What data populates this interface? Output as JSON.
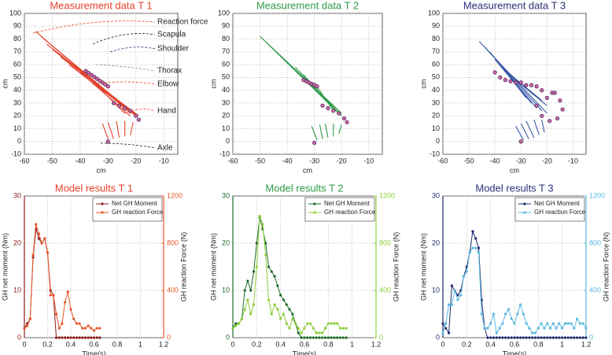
{
  "chart_data": [
    {
      "type": "scatter",
      "title": "Measurement data T 1",
      "title_color": "#e4402a",
      "xlabel": "cm",
      "ylabel": "cm",
      "xlim": [
        -60,
        -5
      ],
      "ylim": [
        -10,
        100
      ],
      "xticks": [
        -60,
        -50,
        -40,
        -30,
        -20,
        -10
      ],
      "yticks": [
        -10,
        0,
        10,
        20,
        30,
        40,
        50,
        60,
        70,
        80,
        90,
        100
      ],
      "grid": true,
      "series": [
        {
          "color": "#5a2458",
          "x": [
            -38,
            -37,
            -36,
            -35,
            -34,
            -33,
            -32,
            -31,
            -30,
            -28,
            -26,
            -24,
            -22,
            -20,
            -19,
            -30
          ],
          "values": [
            55,
            53.5,
            52,
            50.5,
            49,
            47.5,
            46,
            44.5,
            43,
            30,
            28,
            26,
            24,
            20,
            17,
            0
          ]
        }
      ],
      "segments": [
        {
          "color": "#e4402a",
          "x": [
            -56,
            -54,
            -52,
            -50,
            -47,
            -44,
            -40,
            -36,
            -30,
            -28,
            -26,
            -24,
            -22
          ],
          "values": [
            86,
            82,
            76,
            72,
            66,
            60,
            54,
            48,
            2,
            2,
            3,
            4,
            5
          ],
          "x_end": [
            -22,
            -21,
            -20,
            -20,
            -19,
            -20,
            -22,
            -24,
            -32,
            -30,
            -27,
            -24,
            -21
          ],
          "values_end": [
            22,
            22,
            21,
            20,
            20,
            20,
            20,
            22,
            14,
            15,
            16,
            16,
            15
          ]
        }
      ],
      "annotations": [
        "Reaction force",
        "Scapula",
        "Shoulder",
        "Thorax",
        "Elbow",
        "Hand",
        "Axle"
      ]
    },
    {
      "type": "scatter",
      "title": "Measurement data T 2",
      "title_color": "#2e9a48",
      "xlabel": "cm",
      "ylabel": "cm",
      "xlim": [
        -60,
        -5
      ],
      "ylim": [
        -10,
        100
      ],
      "xticks": [
        -60,
        -50,
        -40,
        -30,
        -20,
        -10
      ],
      "yticks": [
        -10,
        0,
        10,
        20,
        30,
        40,
        50,
        60,
        70,
        80,
        90,
        100
      ],
      "grid": true,
      "series": [
        {
          "color": "#5a2458",
          "x": [
            -34,
            -33,
            -32,
            -31,
            -30,
            -29,
            -27,
            -25,
            -23,
            -21,
            -19,
            -18,
            -30
          ],
          "values": [
            48,
            47,
            46,
            45,
            44,
            43,
            28,
            26,
            24,
            22,
            18,
            15,
            -1
          ]
        }
      ],
      "segments": [
        {
          "color": "#2e9a48",
          "x": [
            -50,
            -48,
            -46,
            -43,
            -40,
            -37,
            -34,
            -30,
            -29,
            -27,
            -25,
            -23,
            -21
          ],
          "values": [
            82,
            78,
            74,
            68,
            62,
            58,
            52,
            46,
            1,
            2,
            3,
            4,
            6
          ],
          "x_end": [
            -22,
            -22,
            -21,
            -20,
            -20,
            -20,
            -21,
            -23,
            -31,
            -28,
            -26,
            -23,
            -20
          ],
          "values_end": [
            26,
            24,
            22,
            22,
            20,
            20,
            22,
            24,
            12,
            13,
            14,
            14,
            13
          ]
        }
      ]
    },
    {
      "type": "scatter",
      "title": "Measurement data T 3",
      "title_color": "#2a2f7a",
      "xlabel": "cm",
      "ylabel": "cm",
      "xlim": [
        -60,
        -5
      ],
      "ylim": [
        -10,
        100
      ],
      "xticks": [
        -60,
        -50,
        -40,
        -30,
        -20,
        -10
      ],
      "yticks": [
        -10,
        0,
        10,
        20,
        30,
        40,
        50,
        60,
        70,
        80,
        90,
        100
      ],
      "grid": true,
      "series": [
        {
          "color": "#5a2458",
          "x": [
            -40,
            -38,
            -36,
            -34,
            -32,
            -30,
            -28,
            -26,
            -24,
            -22,
            -18,
            -15,
            -14,
            -16,
            -19,
            -22,
            -24,
            -20,
            -17,
            -30
          ],
          "values": [
            54,
            50,
            48,
            47,
            46,
            46,
            44,
            44,
            43,
            40,
            38,
            32,
            25,
            18,
            16,
            20,
            28,
            34,
            38,
            0
          ]
        }
      ],
      "segments": [
        {
          "color": "#3a5aa8",
          "x": [
            -46,
            -44,
            -42,
            -40,
            -38,
            -36,
            -34,
            -32,
            -29,
            -27,
            -25,
            -23,
            -21
          ],
          "values": [
            78,
            74,
            70,
            64,
            60,
            56,
            52,
            48,
            1,
            2,
            3,
            5,
            7
          ],
          "x_end": [
            -20,
            -22,
            -24,
            -26,
            -28,
            -25,
            -22,
            -20,
            -32,
            -30,
            -28,
            -25,
            -22
          ],
          "values_end": [
            22,
            24,
            26,
            30,
            34,
            36,
            32,
            28,
            12,
            14,
            16,
            17,
            17
          ]
        }
      ]
    },
    {
      "type": "line",
      "title": "Model results T 1",
      "title_color": "#e4402a",
      "xlabel": "Time(s)",
      "ylabel": "GH net moment (Nm)",
      "y2label": "GH reaction Force (N)",
      "ycolor": "#8b1c1c",
      "y2color": "#e8562a",
      "legend": "upper right",
      "grid": true,
      "xlim": [
        0,
        1.2
      ],
      "ylim": [
        0,
        30
      ],
      "y2lim": [
        0,
        1200
      ],
      "xticks": [
        0,
        0.2,
        0.4,
        0.6,
        0.8,
        1,
        1.2
      ],
      "yticks": [
        0,
        10,
        20,
        30
      ],
      "y2ticks": [
        0,
        400,
        800,
        1200
      ],
      "x": [
        0,
        0.025,
        0.05,
        0.075,
        0.1,
        0.125,
        0.15,
        0.175,
        0.2,
        0.225,
        0.25,
        0.275,
        0.3,
        0.325,
        0.35,
        0.375,
        0.4,
        0.425,
        0.45,
        0.475,
        0.5,
        0.525,
        0.55,
        0.575,
        0.6,
        0.625,
        0.65
      ],
      "series": [
        {
          "name": "Net GH Moment",
          "color": "#8b1c1c",
          "values": [
            2,
            3,
            4,
            17,
            23,
            21,
            20,
            21,
            18,
            10,
            9,
            0,
            0,
            0,
            0,
            0,
            0,
            0,
            0,
            0,
            0,
            0,
            0,
            0,
            0,
            0,
            0
          ]
        },
        {
          "name": "GH reaction Force",
          "color": "#e8562a",
          "axis": "y2",
          "values": [
            80,
            100,
            160,
            700,
            960,
            880,
            800,
            840,
            720,
            360,
            360,
            200,
            80,
            120,
            300,
            390,
            240,
            160,
            120,
            120,
            80,
            80,
            100,
            80,
            60,
            80,
            80
          ]
        }
      ]
    },
    {
      "type": "line",
      "title": "Model results T 2",
      "title_color": "#2e9a48",
      "xlabel": "Time(s)",
      "ylabel": "GH net moment (Nm)",
      "y2label": "GH reaction Force (N)",
      "ycolor": "#1e6b2a",
      "y2color": "#8ccf3a",
      "legend": "upper right",
      "grid": true,
      "xlim": [
        0,
        1.2
      ],
      "ylim": [
        0,
        30
      ],
      "y2lim": [
        0,
        1200
      ],
      "xticks": [
        0,
        0.2,
        0.4,
        0.6,
        0.8,
        1,
        1.2
      ],
      "yticks": [
        0,
        10,
        20,
        30
      ],
      "y2ticks": [
        0,
        400,
        800,
        1200
      ],
      "x": [
        0,
        0.025,
        0.05,
        0.075,
        0.1,
        0.125,
        0.15,
        0.175,
        0.2,
        0.225,
        0.25,
        0.275,
        0.3,
        0.325,
        0.35,
        0.375,
        0.4,
        0.425,
        0.45,
        0.475,
        0.5,
        0.525,
        0.55,
        0.575,
        0.6,
        0.625,
        0.65,
        0.675,
        0.7,
        0.725,
        0.75,
        0.775,
        0.8,
        0.825,
        0.85,
        0.875,
        0.9,
        0.925,
        0.95
      ],
      "series": [
        {
          "name": "Net GH Moment",
          "color": "#1e6b2a",
          "values": [
            2,
            3,
            3,
            4,
            10,
            12,
            10,
            14,
            20,
            25.5,
            23,
            20,
            15,
            14,
            13,
            11,
            9,
            8,
            7,
            6,
            5,
            3,
            1,
            0,
            0,
            0,
            0,
            0,
            0,
            0,
            0,
            0,
            0,
            0,
            0,
            0,
            0,
            0,
            0
          ]
        },
        {
          "name": "GH reaction Force",
          "color": "#8ccf3a",
          "axis": "y2",
          "values": [
            80,
            100,
            120,
            160,
            240,
            320,
            200,
            280,
            600,
            1030,
            960,
            700,
            320,
            200,
            280,
            240,
            160,
            200,
            120,
            80,
            160,
            120,
            80,
            40,
            80,
            120,
            120,
            80,
            40,
            40,
            40,
            80,
            120,
            120,
            120,
            120,
            80,
            80,
            80
          ]
        }
      ]
    },
    {
      "type": "line",
      "title": "Model results T 3",
      "title_color": "#2a2f7a",
      "xlabel": "Time(s)",
      "ylabel": "GH net moment (Nm)",
      "y2label": "GH reaction Force (N)",
      "ycolor": "#1f2a6b",
      "y2color": "#5ab8e0",
      "legend": "upper right",
      "grid": true,
      "xlim": [
        0,
        1.2
      ],
      "ylim": [
        0,
        30
      ],
      "y2lim": [
        0,
        1200
      ],
      "xticks": [
        0,
        0.2,
        0.4,
        0.6,
        0.8,
        1,
        1.2
      ],
      "yticks": [
        0,
        10,
        20,
        30
      ],
      "y2ticks": [
        0,
        400,
        800,
        1200
      ],
      "x": [
        0,
        0.025,
        0.05,
        0.075,
        0.1,
        0.125,
        0.15,
        0.175,
        0.2,
        0.225,
        0.25,
        0.275,
        0.3,
        0.325,
        0.35,
        0.375,
        0.4,
        0.425,
        0.45,
        0.475,
        0.5,
        0.525,
        0.55,
        0.575,
        0.6,
        0.625,
        0.65,
        0.675,
        0.7,
        0.725,
        0.75,
        0.775,
        0.8,
        0.825,
        0.85,
        0.875,
        0.9,
        0.925,
        0.95,
        0.975,
        1,
        1.025,
        1.05,
        1.075,
        1.1,
        1.125,
        1.15,
        1.175,
        1.2
      ],
      "series": [
        {
          "name": "Net GH Moment",
          "color": "#1f2a6b",
          "values": [
            3,
            2,
            1,
            11,
            10,
            9,
            10,
            13,
            15,
            18,
            22.5,
            21,
            19,
            8,
            2,
            0,
            0,
            0,
            0,
            0,
            0,
            0,
            0,
            0,
            0,
            0,
            0,
            0,
            0,
            0,
            0,
            0,
            0,
            0,
            0,
            0,
            0,
            0,
            0,
            0,
            0,
            0,
            0,
            0,
            0,
            0,
            0,
            0,
            0
          ]
        },
        {
          "name": "GH reaction Force",
          "color": "#5ab8e0",
          "axis": "y2",
          "values": [
            40,
            120,
            280,
            280,
            400,
            320,
            360,
            520,
            560,
            720,
            760,
            760,
            720,
            200,
            80,
            80,
            120,
            200,
            40,
            80,
            120,
            200,
            240,
            160,
            120,
            200,
            280,
            200,
            120,
            80,
            40,
            40,
            80,
            120,
            80,
            120,
            80,
            120,
            80,
            120,
            80,
            120,
            120,
            120,
            80,
            160,
            120,
            120,
            80
          ]
        }
      ]
    }
  ]
}
